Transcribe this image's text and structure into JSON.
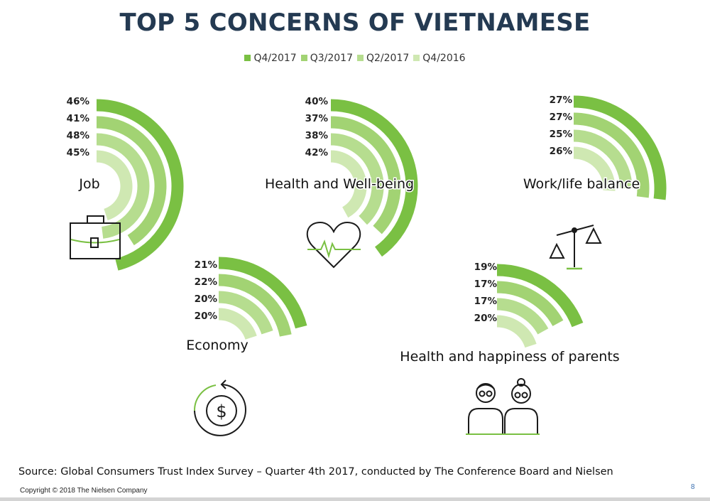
{
  "title": "TOP 5 CONCERNS OF VIETNAMESE",
  "colors": {
    "Q4/2017": "#7ac043",
    "Q3/2017": "#a2d373",
    "Q2/2017": "#b6dd8f",
    "Q4/2016": "#cfe8b2",
    "title": "#243a52",
    "icon": "#1a1a1a",
    "icon_accent": "#7ac043"
  },
  "chart_data": {
    "type": "bar",
    "series_order": [
      "Q4/2017",
      "Q3/2017",
      "Q2/2017",
      "Q4/2016"
    ],
    "categories": [
      "Job",
      "Health and Well-being",
      "Work/life balance",
      "Economy",
      "Health and happiness of parents"
    ],
    "series": [
      {
        "name": "Q4/2017",
        "values": [
          46,
          40,
          27,
          21,
          19
        ]
      },
      {
        "name": "Q3/2017",
        "values": [
          41,
          37,
          27,
          22,
          17
        ]
      },
      {
        "name": "Q2/2017",
        "values": [
          48,
          38,
          25,
          20,
          17
        ]
      },
      {
        "name": "Q4/2016",
        "values": [
          45,
          42,
          26,
          20,
          20
        ]
      }
    ],
    "value_labels": [
      [
        "46%",
        "41%",
        "48%",
        "45%"
      ],
      [
        "40%",
        "37%",
        "38%",
        "42%"
      ],
      [
        "27%",
        "27%",
        "25%",
        "26%"
      ],
      [
        "21%",
        "22%",
        "20%",
        "20%"
      ],
      [
        "19%",
        "17%",
        "17%",
        "20%"
      ]
    ],
    "icons": [
      "briefcase-icon",
      "heartbeat-icon",
      "balance-scale-icon",
      "dollar-cycle-icon",
      "elderly-couple-icon"
    ],
    "legend_position": "top"
  },
  "footer": {
    "source": "Source: Global Consumers Trust Index Survey – Quarter 4th 2017, conducted by The Conference Board and Nielsen",
    "copyright": "Copyright © 2018 The Nielsen Company",
    "page_number": "8"
  }
}
